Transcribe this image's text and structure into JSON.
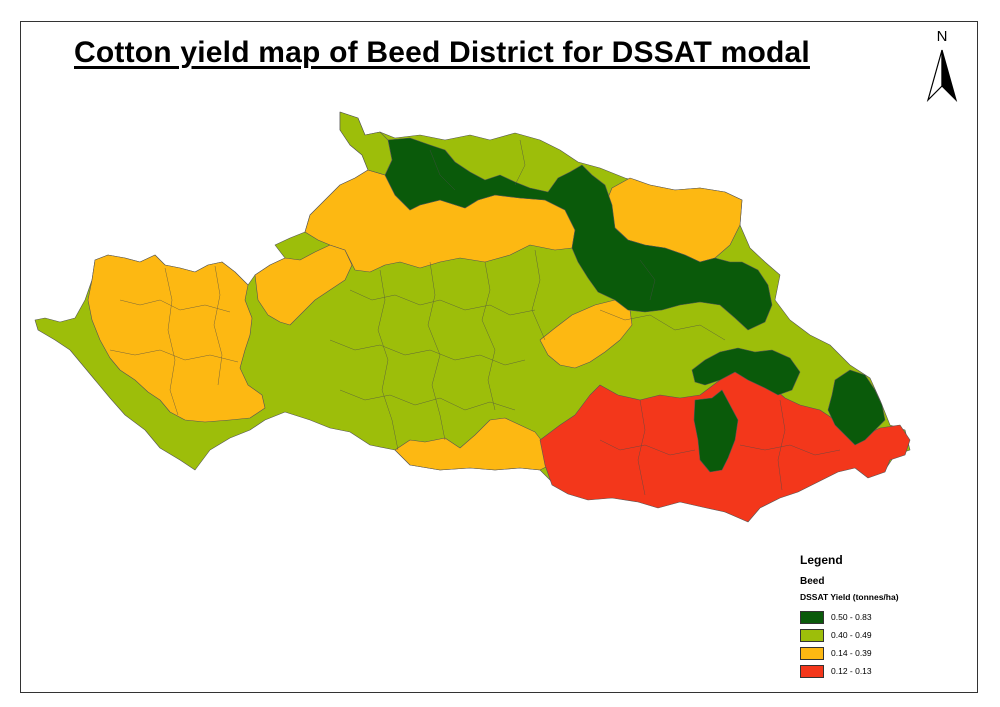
{
  "title": "Cotton yield map of Beed District for DSSAT  modal",
  "north_arrow": {
    "label": "N"
  },
  "legend": {
    "heading": "Legend",
    "layer": "Beed",
    "field": "DSSAT Yield (tonnes/ha)",
    "classes": [
      {
        "label": "0.50 - 0.83",
        "color": "#0a5a0a"
      },
      {
        "label": "0.40 - 0.49",
        "color": "#9dbe0a"
      },
      {
        "label": "0.14 - 0.39",
        "color": "#fdb812"
      },
      {
        "label": "0.12 - 0.13",
        "color": "#f3371b"
      }
    ]
  }
}
